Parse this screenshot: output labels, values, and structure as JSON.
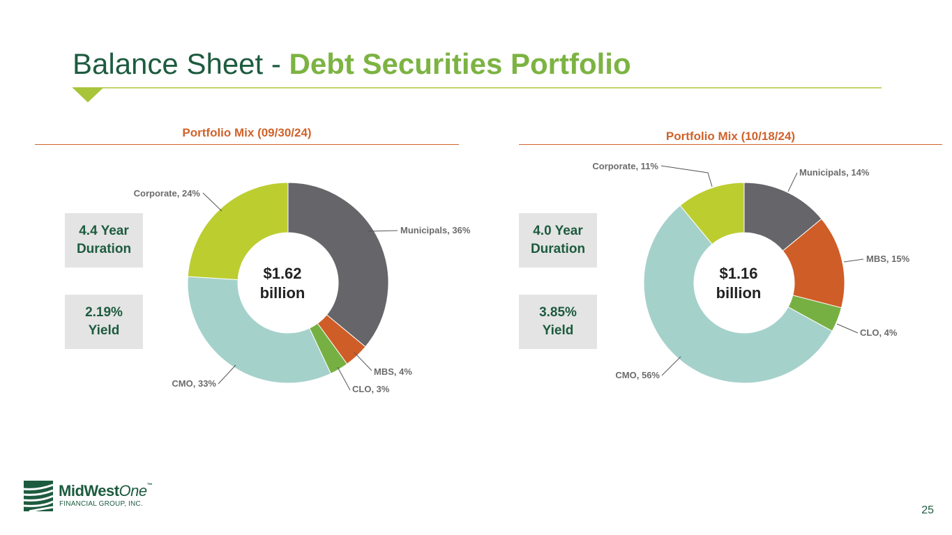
{
  "slide": {
    "title_part1": "Balance Sheet - ",
    "title_part2": "Debt Securities Portfolio",
    "page_number": "25"
  },
  "colors": {
    "title_dark": "#1d5b3f",
    "title_accent": "#7cb342",
    "section_title": "#d0622b",
    "Municipals": "#666569",
    "MBS": "#cf5d27",
    "CLO": "#76b043",
    "CMO": "#a5d1cb",
    "Corporate": "#bccd30"
  },
  "logo": {
    "name_part1": "MidWest",
    "name_part2": "One",
    "tm": "™",
    "subtitle": "FINANCIAL GROUP, INC."
  },
  "left_panel": {
    "section_title": "Portfolio Mix (09/30/24)",
    "duration_box": "4.4 Year\nDuration",
    "yield_box": "2.19%\nYield"
  },
  "right_panel": {
    "section_title": "Portfolio Mix (10/18/24)",
    "duration_box": "4.0 Year\nDuration",
    "yield_box": "3.85%\nYield"
  },
  "chart_data": [
    {
      "type": "pie",
      "variant": "donut",
      "title": "Portfolio Mix (09/30/24)",
      "center_label": [
        "$1.62",
        "billion"
      ],
      "categories": [
        "Municipals",
        "MBS",
        "CLO",
        "CMO",
        "Corporate"
      ],
      "values": [
        36,
        4,
        3,
        33,
        24
      ],
      "labels": [
        "Municipals, 36%",
        "MBS, 4%",
        "CLO, 3%",
        "CMO, 33%",
        "Corporate, 24%"
      ]
    },
    {
      "type": "pie",
      "variant": "donut",
      "title": "Portfolio Mix (10/18/24)",
      "center_label": [
        "$1.16",
        "billion"
      ],
      "categories": [
        "Municipals",
        "MBS",
        "CLO",
        "CMO",
        "Corporate"
      ],
      "values": [
        14,
        15,
        4,
        56,
        11
      ],
      "labels": [
        "Municipals, 14%",
        "MBS, 15%",
        "CLO, 4%",
        "CMO, 56%",
        "Corporate, 11%"
      ]
    }
  ]
}
